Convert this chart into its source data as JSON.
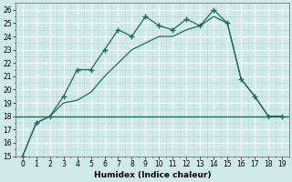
{
  "xlabel": "Humidex (Indice chaleur)",
  "x": [
    0,
    1,
    2,
    3,
    4,
    5,
    6,
    7,
    8,
    9,
    10,
    11,
    12,
    13,
    14,
    15,
    16,
    17,
    18,
    19
  ],
  "y_curve1": [
    15,
    17.5,
    18,
    19.5,
    21.5,
    21.5,
    23,
    24.5,
    24,
    25.5,
    24.8,
    24.5,
    25.3,
    24.8,
    26,
    25,
    20.8,
    19.5,
    18,
    18
  ],
  "y_curve2": [
    15,
    17.5,
    18,
    19,
    19.2,
    19.8,
    21,
    22,
    23,
    23.5,
    24,
    24,
    24.5,
    24.8,
    25.5,
    25,
    20.8,
    19.5,
    18,
    18
  ],
  "y_hline": 18,
  "line_color": "#1c6b5a",
  "bg_color": "#d0eaea",
  "grid_major_color": "#ffffff",
  "grid_minor_color": "#b8d8d8",
  "ylim": [
    15,
    26.5
  ],
  "yticks": [
    15,
    16,
    17,
    18,
    19,
    20,
    21,
    22,
    23,
    24,
    25,
    26
  ],
  "xlim": [
    -0.5,
    19.5
  ],
  "xticks": [
    0,
    1,
    2,
    3,
    4,
    5,
    6,
    7,
    8,
    9,
    10,
    11,
    12,
    13,
    14,
    15,
    16,
    17,
    18,
    19
  ],
  "tick_fontsize": 5.5,
  "xlabel_fontsize": 6.5
}
